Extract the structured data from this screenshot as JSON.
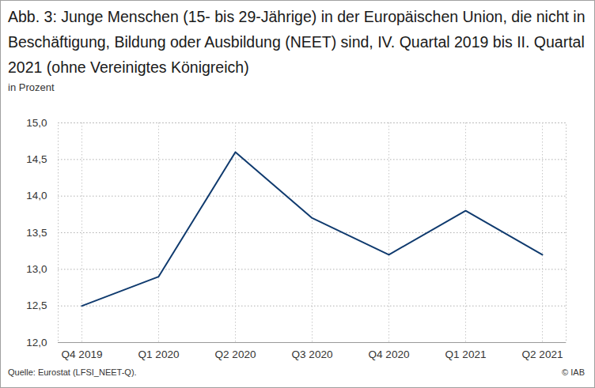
{
  "chart_data": {
    "type": "line",
    "title": "Abb. 3: Junge Menschen (15- bis 29-Jährige) in der Europäischen Union, die nicht in Beschäftigung, Bildung oder Ausbildung (NEET) sind, IV. Quartal 2019 bis II. Quartal 2021 (ohne Vereinigtes Königreich)",
    "y_label": "in Prozent",
    "source": "Quelle: Eurostat (LFSI_NEET-Q).",
    "copyright": "© IAB",
    "categories": [
      "Q4 2019",
      "Q1 2020",
      "Q2 2020",
      "Q3 2020",
      "Q4 2020",
      "Q1 2021",
      "Q2 2021"
    ],
    "values": [
      12.5,
      12.9,
      14.6,
      13.7,
      13.2,
      13.8,
      13.2
    ],
    "color": "#0f3a6e",
    "ylim": [
      12,
      15
    ],
    "yticks": [
      {
        "value": 12,
        "label": "12,0"
      },
      {
        "value": 12.5,
        "label": "12,5"
      },
      {
        "value": 13,
        "label": "13,0"
      },
      {
        "value": 13.5,
        "label": "13,5"
      },
      {
        "value": 14,
        "label": "14,0"
      },
      {
        "value": 14.5,
        "label": "14,5"
      },
      {
        "value": 15,
        "label": "15,0"
      }
    ],
    "grid": true
  }
}
